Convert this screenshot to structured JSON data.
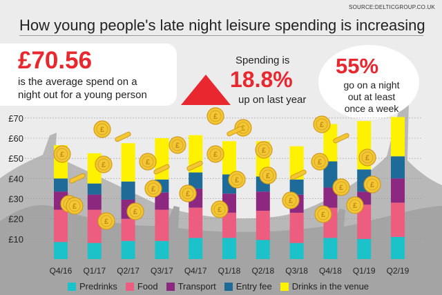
{
  "source": "SOURCE:DELTICGROUP.CO.UK",
  "headline": "How young people's late night leisure spending is increasing",
  "stat_average": {
    "value": "£70.56",
    "line1": "is the average spend on a",
    "line2": "night out for a young person"
  },
  "stat_growth": {
    "label": "Spending is",
    "value": "18.8%",
    "sub": "up on last year"
  },
  "stat_frequency": {
    "value": "55%",
    "line1": "go on a night",
    "line2": "out at least",
    "line3": "once a week"
  },
  "colors": {
    "accent": "#e8272e",
    "predrinks": "#1cc2c9",
    "food": "#ec5d80",
    "transport": "#8c2880",
    "entry_fee": "#1e6b99",
    "drinks": "#fff200",
    "coin": "#f2c733"
  },
  "chart_data": {
    "type": "bar",
    "stacked": true,
    "categories": [
      "Q4/16",
      "Q1/17",
      "Q2/17",
      "Q3/17",
      "Q4/17",
      "Q1/18",
      "Q2/18",
      "Q3/18",
      "Q4/18",
      "Q1/19",
      "Q2/19"
    ],
    "ylim": [
      0,
      72
    ],
    "yticks": [
      10,
      20,
      30,
      40,
      50,
      60,
      70
    ],
    "ytick_labels": [
      "£10",
      "£20",
      "£30",
      "£40",
      "£50",
      "£60",
      "£70"
    ],
    "series": [
      {
        "name": "Predrinks",
        "color_key": "predrinks",
        "values": [
          8.5,
          8,
          9,
          9,
          10.5,
          10.5,
          9.5,
          8,
          10.5,
          10,
          11
        ]
      },
      {
        "name": "Food",
        "color_key": "food",
        "values": [
          16,
          16.5,
          11,
          15.5,
          15,
          12.5,
          14.5,
          15,
          15,
          17,
          17
        ]
      },
      {
        "name": "Transport",
        "color_key": "transport",
        "values": [
          9,
          7.5,
          9.5,
          8.5,
          9.5,
          9.5,
          9.5,
          9,
          10,
          6.5,
          12
        ]
      },
      {
        "name": "Entry fee",
        "color_key": "entry_fee",
        "values": [
          6.5,
          5.5,
          9,
          6.5,
          8,
          9.5,
          7.5,
          7.5,
          13,
          11,
          11
        ]
      },
      {
        "name": "Drinks in the venue",
        "color_key": "drinks",
        "values": [
          16.5,
          15,
          19,
          20.5,
          18.5,
          16.5,
          17.5,
          16.5,
          18.5,
          24,
          19.5
        ]
      }
    ]
  }
}
